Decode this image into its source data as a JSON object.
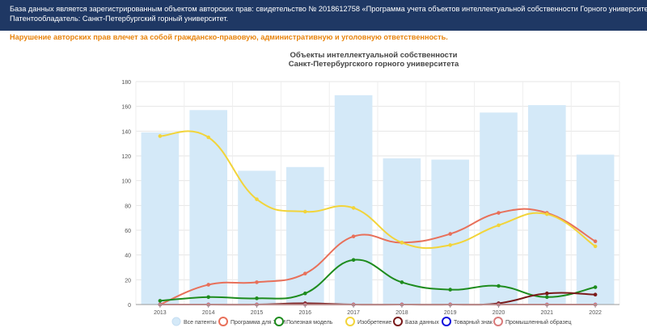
{
  "banner": {
    "line1": "База данных является зарегистрированным объектом авторских прав: свидетельство № 2018612758 «Программа учета объектов интеллектуальной собственности Горного университета».",
    "line2": "Патентообладатель: Санкт-Петербургский горный университет."
  },
  "warning": "Нарушение авторских прав влечет за собой гражданско-правовую, административную и уголовную ответственность.",
  "chart_data": {
    "type": "bar",
    "title": [
      "Объекты интеллектуальной собственности",
      "Санкт-Петербургского горного университета"
    ],
    "categories": [
      "2013",
      "2014",
      "2015",
      "2016",
      "2017",
      "2018",
      "2019",
      "2020",
      "2021",
      "2022"
    ],
    "ylim": [
      0,
      180
    ],
    "yticks": [
      0,
      20,
      40,
      60,
      80,
      100,
      120,
      140,
      160,
      180
    ],
    "legend_position": "bottom",
    "bar_series": {
      "name": "Все патенты",
      "color": "#d4e9f8",
      "values": [
        139,
        157,
        108,
        111,
        169,
        118,
        117,
        155,
        161,
        121
      ]
    },
    "line_series": [
      {
        "name": "Программа для ЭВМ",
        "color": "#e8705a",
        "values": [
          0,
          16,
          18,
          25,
          55,
          50,
          57,
          74,
          74,
          51
        ]
      },
      {
        "name": "Полезная модель",
        "color": "#1e8c1e",
        "values": [
          3,
          6,
          5,
          9,
          36,
          18,
          12,
          15,
          6,
          14
        ]
      },
      {
        "name": "Изобретение",
        "color": "#f2d43a",
        "values": [
          136,
          135,
          85,
          75,
          78,
          50,
          48,
          64,
          73,
          47
        ]
      },
      {
        "name": "База данных",
        "color": "#7a1a1a",
        "values": [
          0,
          0,
          0,
          1,
          0,
          0,
          0,
          1,
          9,
          8
        ]
      },
      {
        "name": "Товарный знак",
        "color": "#1010dd",
        "values": [
          0,
          0,
          0,
          0,
          0,
          0,
          0,
          0,
          0,
          0
        ]
      },
      {
        "name": "Промышленный образец",
        "color": "#d97b7b",
        "values": [
          0,
          0,
          0,
          0,
          0,
          0,
          0,
          0,
          0,
          0
        ]
      }
    ]
  }
}
